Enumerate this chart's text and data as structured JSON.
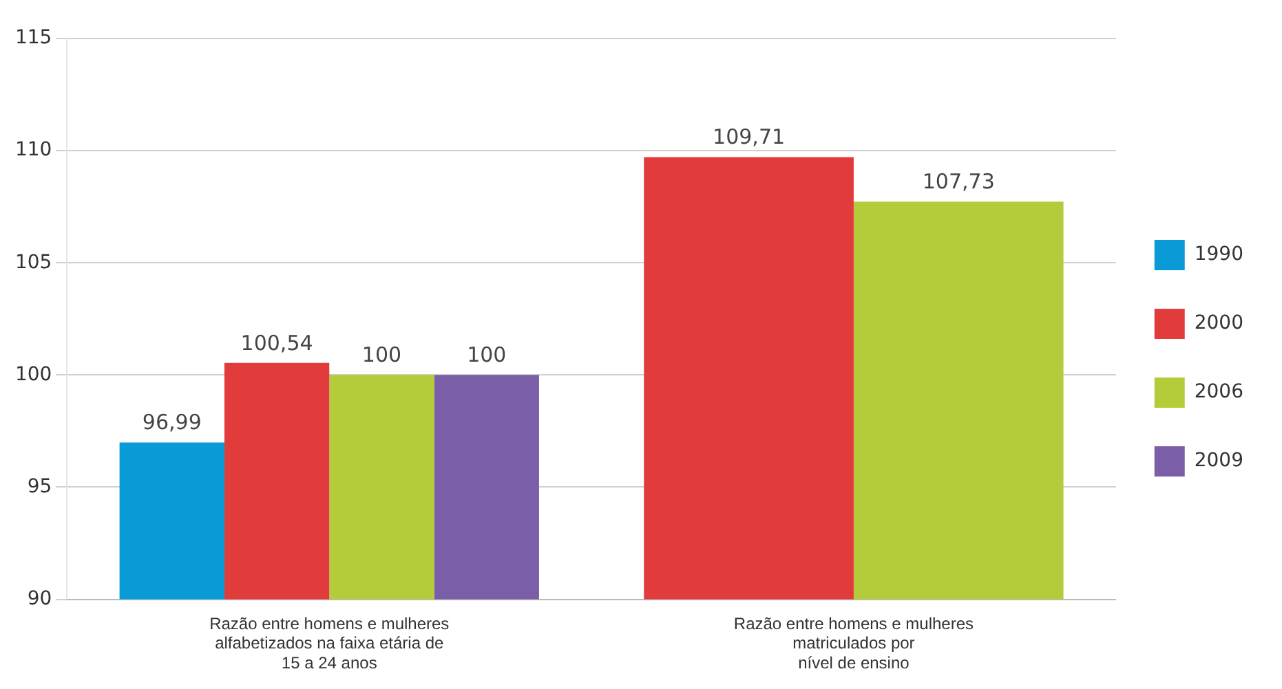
{
  "chart_data": {
    "type": "bar",
    "categories": [
      "Razão entre homens e mulheres\nalfabetizados na faixa etária de\n15 a 24 anos",
      "Razão entre homens e mulheres\nmatriculados por\nnível de ensino"
    ],
    "series": [
      {
        "name": "1990",
        "color": "#0a9ad6",
        "values": [
          96.99,
          null
        ],
        "value_labels": [
          "96,99",
          null
        ]
      },
      {
        "name": "2000",
        "color": "#e23b3b",
        "values": [
          100.54,
          109.71
        ],
        "value_labels": [
          "100,54",
          "109,71"
        ]
      },
      {
        "name": "2006",
        "color": "#b5cc3a",
        "values": [
          100,
          107.73
        ],
        "value_labels": [
          "100",
          "107,73"
        ]
      },
      {
        "name": "2009",
        "color": "#7a5ea8",
        "values": [
          100,
          null
        ],
        "value_labels": [
          "100",
          null
        ]
      }
    ],
    "ylim": [
      90,
      115
    ],
    "yticks": [
      90,
      95,
      100,
      105,
      110,
      115
    ],
    "grid": "y",
    "legend": "right"
  }
}
